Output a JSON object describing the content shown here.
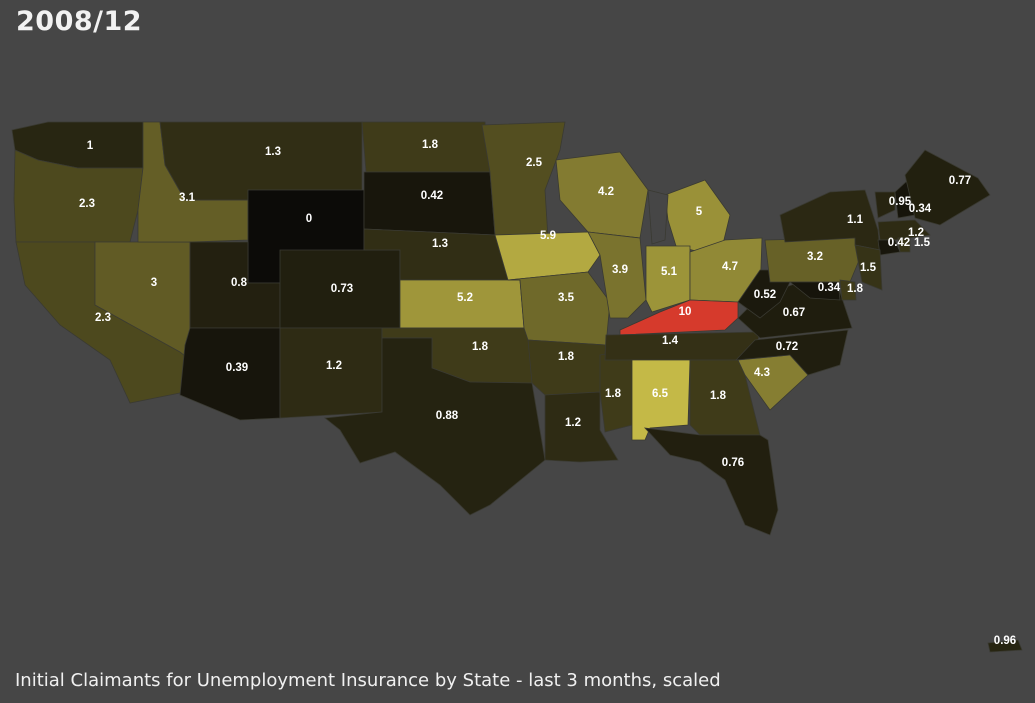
{
  "period_label": "2008/12",
  "caption": "Initial Claimants for Unemployment Insurance by State - last 3 months, scaled",
  "colors": {
    "background": "#464646",
    "scale_low": "#0c0b08",
    "scale_mid": "#c4b947",
    "scale_high": "#d63a2c",
    "lake": "#464646"
  },
  "color_scale": {
    "min": 0,
    "mid": 6.5,
    "max": 10
  },
  "states": [
    {
      "code": "WA",
      "value": "1"
    },
    {
      "code": "OR",
      "value": "2.3"
    },
    {
      "code": "CA",
      "value": "2.3"
    },
    {
      "code": "NV",
      "value": "3"
    },
    {
      "code": "ID",
      "value": "3.1"
    },
    {
      "code": "MT",
      "value": "1.3"
    },
    {
      "code": "WY",
      "value": "0"
    },
    {
      "code": "UT",
      "value": "0.8"
    },
    {
      "code": "AZ",
      "value": "0.39"
    },
    {
      "code": "CO",
      "value": "0.73"
    },
    {
      "code": "NM",
      "value": "1.2"
    },
    {
      "code": "ND",
      "value": "1.8"
    },
    {
      "code": "SD",
      "value": "0.42"
    },
    {
      "code": "NE",
      "value": "1.3"
    },
    {
      "code": "KS",
      "value": "5.2"
    },
    {
      "code": "OK",
      "value": "1.8"
    },
    {
      "code": "TX",
      "value": "0.88"
    },
    {
      "code": "MN",
      "value": "2.5"
    },
    {
      "code": "IA",
      "value": "5.9"
    },
    {
      "code": "MO",
      "value": "3.5"
    },
    {
      "code": "AR",
      "value": "1.8"
    },
    {
      "code": "LA",
      "value": "1.2"
    },
    {
      "code": "WI",
      "value": "4.2"
    },
    {
      "code": "IL",
      "value": "3.9"
    },
    {
      "code": "MS",
      "value": "1.8"
    },
    {
      "code": "MI",
      "value": "5"
    },
    {
      "code": "IN",
      "value": "5.1"
    },
    {
      "code": "OH",
      "value": "4.7"
    },
    {
      "code": "KY",
      "value": "10"
    },
    {
      "code": "TN",
      "value": "1.4"
    },
    {
      "code": "AL",
      "value": "6.5"
    },
    {
      "code": "GA",
      "value": "1.8"
    },
    {
      "code": "FL",
      "value": "0.76"
    },
    {
      "code": "SC",
      "value": "4.3"
    },
    {
      "code": "NC",
      "value": "0.72"
    },
    {
      "code": "VA",
      "value": "0.67"
    },
    {
      "code": "WV",
      "value": "0.52"
    },
    {
      "code": "PA",
      "value": "3.2"
    },
    {
      "code": "NY",
      "value": "1.1"
    },
    {
      "code": "VT",
      "value": "0.95"
    },
    {
      "code": "NH",
      "value": "0.34"
    },
    {
      "code": "ME",
      "value": "0.77"
    },
    {
      "code": "MA",
      "value": "1.2"
    },
    {
      "code": "CT",
      "value": "0.42"
    },
    {
      "code": "RI",
      "value": "1.5"
    },
    {
      "code": "NJ",
      "value": "1.5"
    },
    {
      "code": "MD",
      "value": "0.34"
    },
    {
      "code": "DE",
      "value": "1.8"
    },
    {
      "code": "PR",
      "value": "0.96"
    }
  ]
}
